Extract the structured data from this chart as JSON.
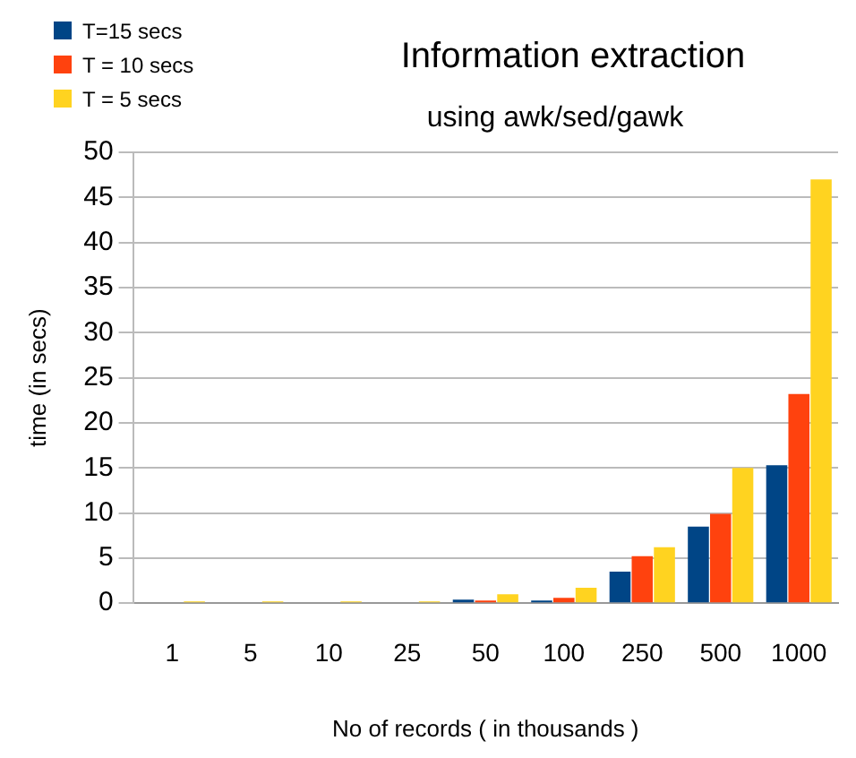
{
  "chart_data": {
    "type": "bar",
    "title": "Information extraction",
    "subtitle": "using awk/sed/gawk",
    "xlabel": "No of records ( in thousands )",
    "ylabel": "time (in secs)",
    "categories": [
      "1",
      "5",
      "10",
      "25",
      "50",
      "100",
      "250",
      "500",
      "1000"
    ],
    "series": [
      {
        "name": "T=15 secs",
        "color": "#004586",
        "values": [
          0,
          0,
          0,
          0,
          0.4,
          0.3,
          3.5,
          8.5,
          15.3
        ]
      },
      {
        "name": "T = 10 secs",
        "color": "#ff420e",
        "values": [
          0,
          0,
          0,
          0,
          0.3,
          0.6,
          5.2,
          9.9,
          23.2
        ]
      },
      {
        "name": "T = 5 secs",
        "color": "#ffd320",
        "values": [
          0.2,
          0.2,
          0.2,
          0.2,
          1.0,
          1.7,
          6.2,
          15,
          47
        ]
      }
    ],
    "ylim": [
      0,
      50
    ],
    "yticks": [
      0,
      5,
      10,
      15,
      20,
      25,
      30,
      35,
      40,
      45,
      50
    ],
    "grid": "y",
    "legend": "top left"
  }
}
